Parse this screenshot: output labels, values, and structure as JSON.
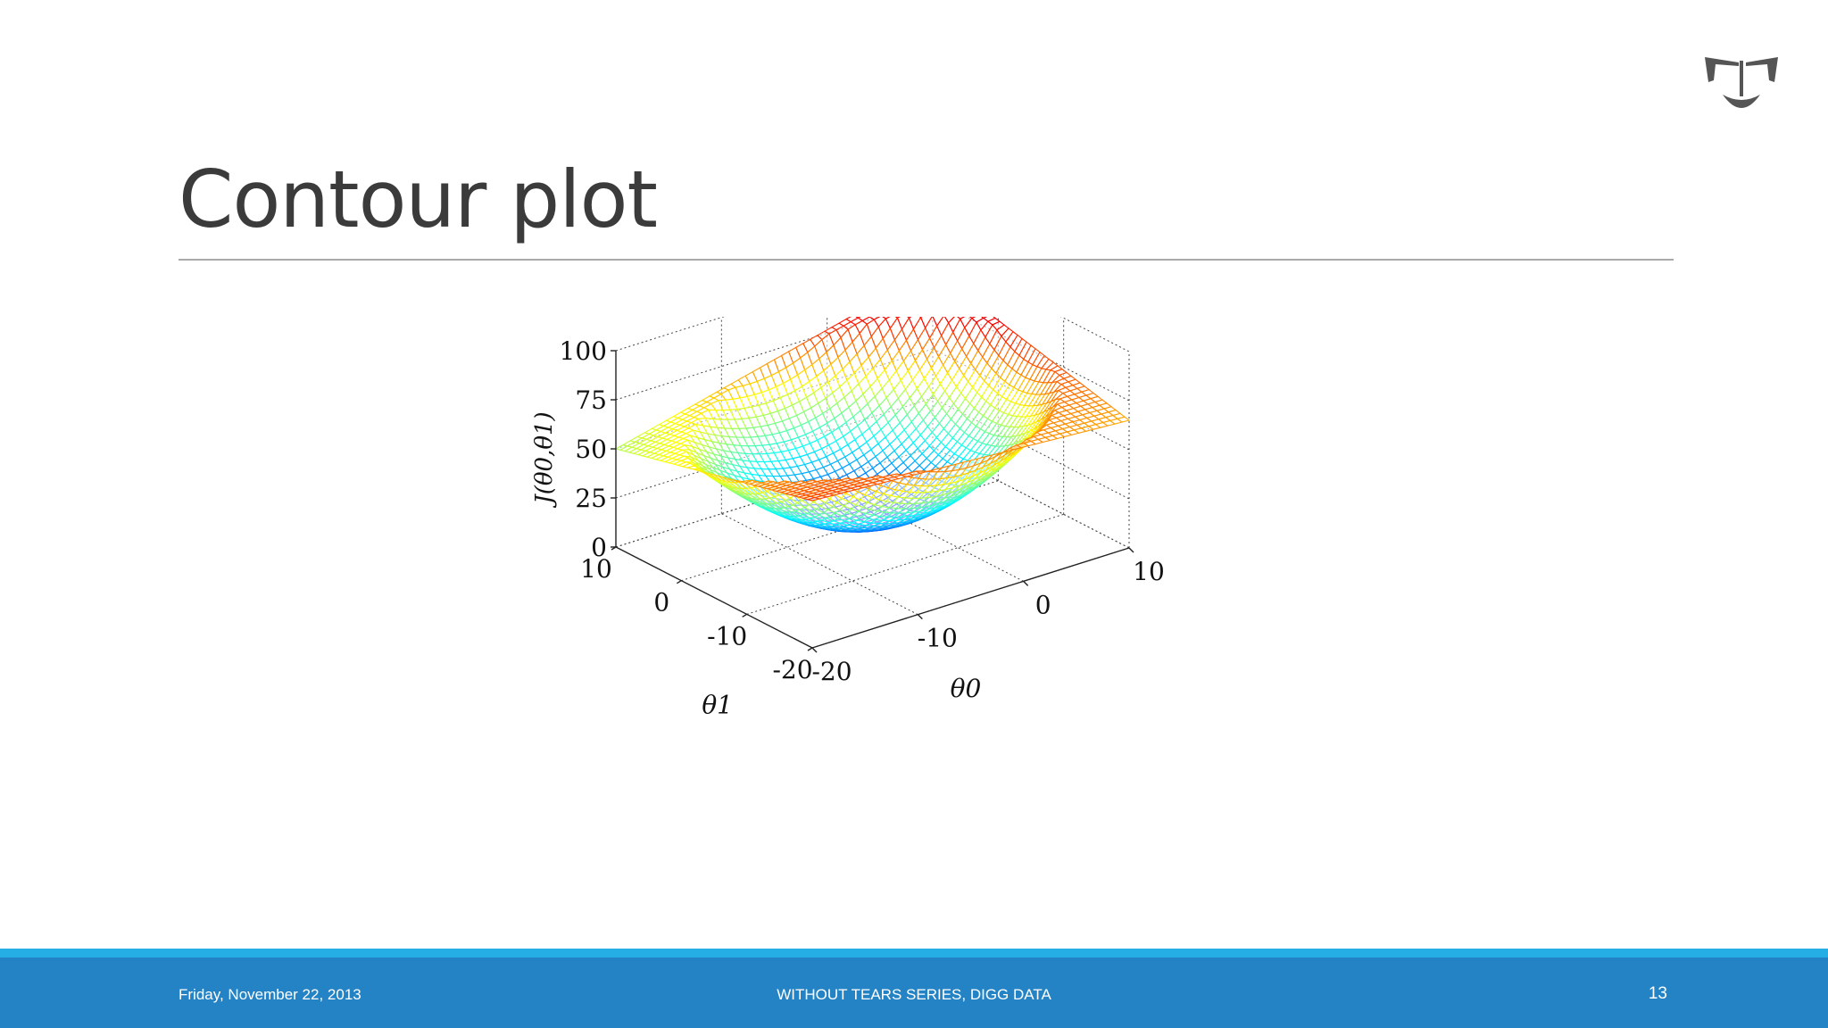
{
  "slide": {
    "title": "Contour plot",
    "logo_icon": "tau-crest-logo-icon"
  },
  "footer": {
    "date": "Friday, November 22, 2013",
    "series": "WITHOUT TEARS SERIES, DIGG DATA",
    "page": "13"
  },
  "chart_data": {
    "type": "surface",
    "title": "",
    "xlabel": "θ0",
    "ylabel": "θ1",
    "zlabel": "J(θ0,θ1)",
    "x_ticks": [
      -20,
      -10,
      0,
      10
    ],
    "y_ticks": [
      -20,
      -10,
      0,
      10
    ],
    "z_ticks": [
      0,
      25,
      50,
      75,
      100
    ],
    "xlim": [
      -20,
      10
    ],
    "ylim": [
      -20,
      10
    ],
    "zlim": [
      0,
      100
    ],
    "grid": true,
    "colormap": "jet",
    "mesh": "wireframe",
    "corner_values": [
      {
        "x": -20,
        "y": 10,
        "z": 50
      },
      {
        "x": 10,
        "y": 10,
        "z": 90
      },
      {
        "x": 10,
        "y": -20,
        "z": 65
      },
      {
        "x": -20,
        "y": -20,
        "z": 75
      }
    ],
    "minimum": {
      "x": -5,
      "y": -5,
      "z": 0
    }
  }
}
